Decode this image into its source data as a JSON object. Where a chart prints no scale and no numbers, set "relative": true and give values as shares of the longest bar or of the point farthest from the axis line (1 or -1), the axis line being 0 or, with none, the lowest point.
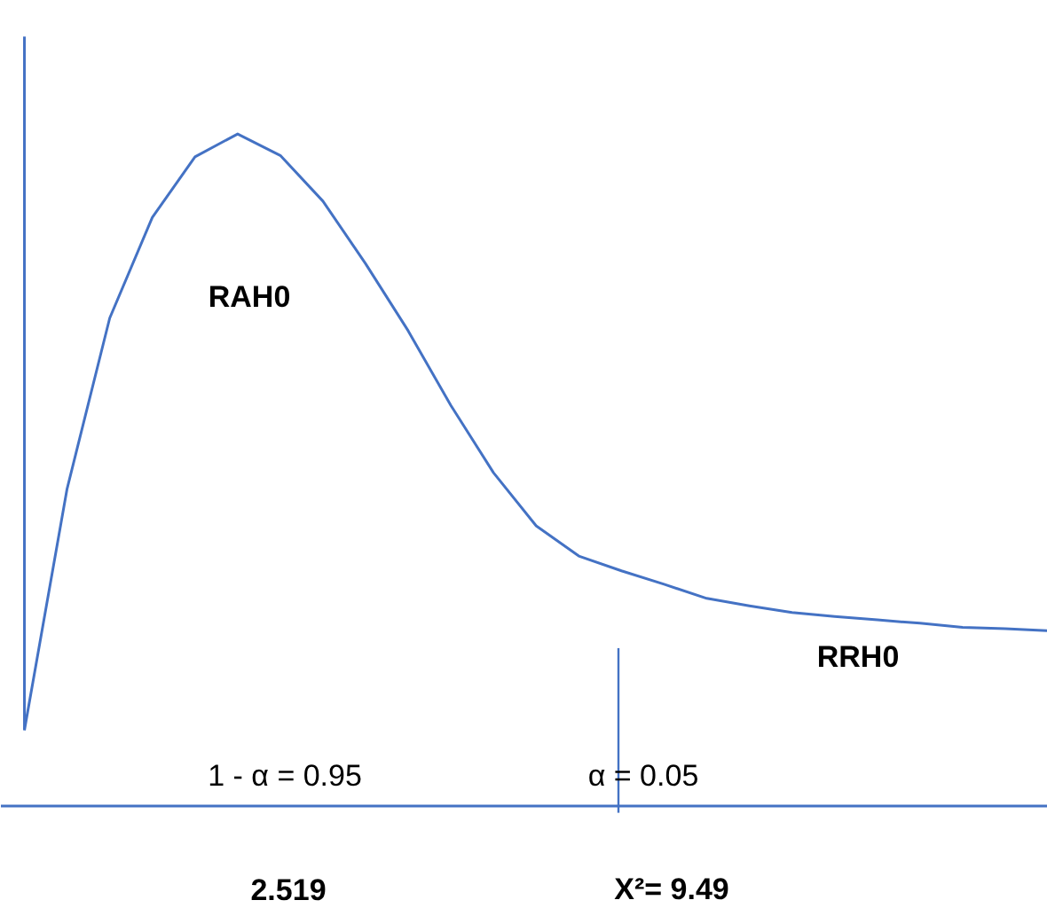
{
  "chart_data": {
    "type": "line",
    "relative": true,
    "tick_labels": false,
    "grid": false,
    "marker": "none",
    "line_style": "solid",
    "categories": [
      null,
      null,
      null,
      null,
      null,
      null,
      null,
      null,
      null,
      null,
      null,
      null,
      null,
      null,
      null,
      null,
      null,
      null,
      null,
      null,
      null,
      null,
      null,
      null,
      null
    ],
    "series": [
      {
        "color": "#4472c4",
        "values": [
          0.113,
          0.472,
          0.726,
          0.876,
          0.966,
          1.0,
          0.968,
          0.9,
          0.807,
          0.707,
          0.596,
          0.496,
          0.417,
          0.372,
          0.35,
          0.33,
          0.309,
          0.298,
          0.288,
          0.282,
          0.277,
          0.272,
          0.266,
          0.264,
          0.261
        ]
      }
    ],
    "annotations": [
      "RAH0",
      "RRH0",
      "1 - α = 0.95",
      "α = 0.05",
      "2.519",
      "X²= 9.49"
    ]
  }
}
